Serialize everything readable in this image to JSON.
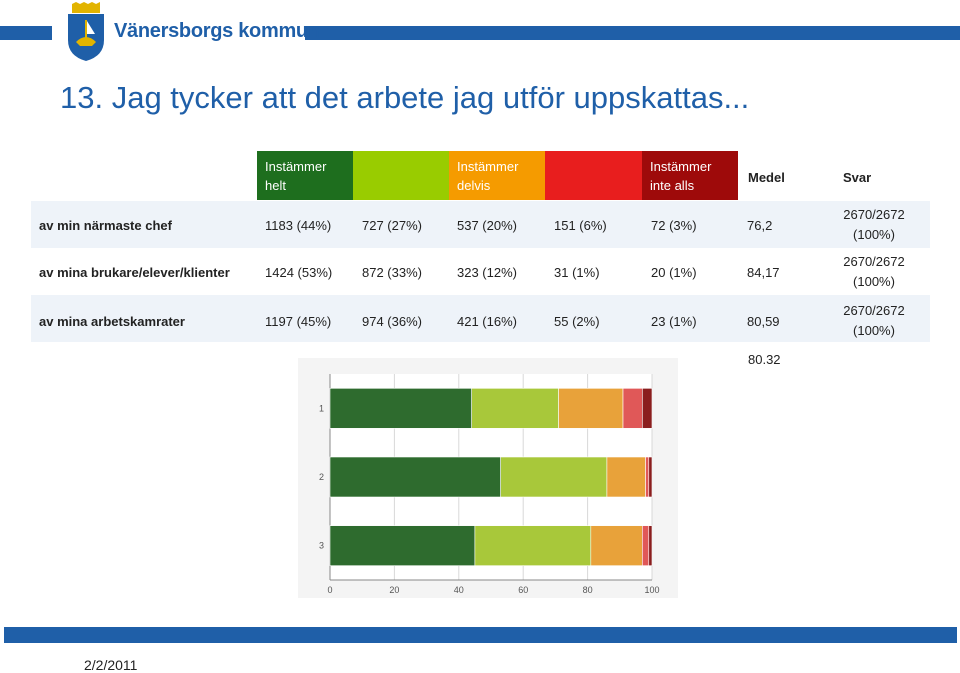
{
  "header": {
    "brand": "Vänersborgs kommun"
  },
  "slide": {
    "title": "13. Jag tycker att det arbete jag utför uppskattas..."
  },
  "table": {
    "columns": [
      {
        "label": "Instämmer helt",
        "color": "#1e6e1e"
      },
      {
        "label": "",
        "color": "#99cc00"
      },
      {
        "label": "Instämmer delvis",
        "color": "#f59b00"
      },
      {
        "label": "",
        "color": "#e81e1e"
      },
      {
        "label": "Instämmer inte alls",
        "color": "#9e0a0a"
      }
    ],
    "col_medel": "Medel",
    "col_svar": "Svar",
    "rows": [
      {
        "label": "av min närmaste chef",
        "values": [
          "1183 (44%)",
          "727 (27%)",
          "537 (20%)",
          "151 (6%)",
          "72 (3%)"
        ],
        "medel": "76,2",
        "svar": "2670/2672 (100%)"
      },
      {
        "label": "av mina brukare/elever/klienter",
        "values": [
          "1424 (53%)",
          "872 (33%)",
          "323 (12%)",
          "31 (1%)",
          "20 (1%)"
        ],
        "medel": "84,17",
        "svar": "2670/2672 (100%)"
      },
      {
        "label": "av mina arbetskamrater",
        "values": [
          "1197 (45%)",
          "974 (36%)",
          "421 (16%)",
          "55 (2%)",
          "23 (1%)"
        ],
        "medel": "80,59",
        "svar": "2670/2672 (100%)"
      }
    ],
    "extra": "80.32"
  },
  "chart_data": {
    "type": "bar",
    "orientation": "horizontal-stacked",
    "categories": [
      "1",
      "2",
      "3"
    ],
    "series": [
      {
        "values": [
          44,
          53,
          45
        ],
        "color": "#2e6b2e"
      },
      {
        "values": [
          27,
          33,
          36
        ],
        "color": "#a8c83a"
      },
      {
        "values": [
          20,
          12,
          16
        ],
        "color": "#e8a23a"
      },
      {
        "values": [
          6,
          1,
          2
        ],
        "color": "#e05858"
      },
      {
        "values": [
          3,
          1,
          1
        ],
        "color": "#8a1e1e"
      }
    ],
    "xlim": [
      0,
      100
    ],
    "xticks": [
      "0",
      "20",
      "40",
      "60",
      "80",
      "100"
    ],
    "grid": true
  },
  "footer": {
    "date": "2/2/2011"
  }
}
